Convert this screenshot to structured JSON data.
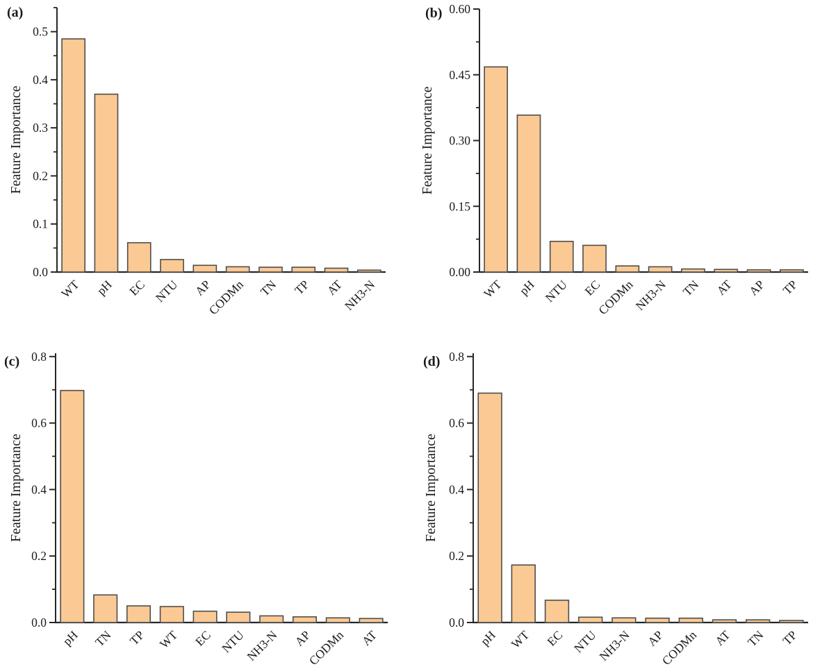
{
  "figure": {
    "background": "#ffffff",
    "ylabel": "Feature Importance"
  },
  "style": {
    "bar_fill": "#FBC993",
    "bar_edge": "#4D4D4D",
    "axis_color": "#262626",
    "text_color": "#1A1A1A"
  },
  "chart_data": [
    {
      "panel_label": "(a)",
      "type": "bar",
      "title": "",
      "xlabel": "",
      "ylabel": "Feature Importance",
      "legend": "none",
      "grid": false,
      "categories": [
        "WT",
        "pH",
        "EC",
        "NTU",
        "AP",
        "CODMn",
        "TN",
        "TP",
        "AT",
        "NH3-N"
      ],
      "values": [
        0.485,
        0.37,
        0.061,
        0.026,
        0.014,
        0.011,
        0.01,
        0.01,
        0.008,
        0.004
      ],
      "ytick_values": [
        0.0,
        0.1,
        0.2,
        0.3,
        0.4,
        0.5
      ],
      "ytick_labels": [
        "0.0",
        "0.1",
        "0.2",
        "0.3",
        "0.4",
        "0.5"
      ],
      "minor_tick_step": 0.05,
      "ylim": [
        0,
        0.55
      ]
    },
    {
      "panel_label": "(b)",
      "type": "bar",
      "title": "",
      "xlabel": "",
      "ylabel": "Feature Importance",
      "legend": "none",
      "grid": false,
      "categories": [
        "WT",
        "pH",
        "NTU",
        "EC",
        "CODMn",
        "NH3-N",
        "TN",
        "AT",
        "AP",
        "TP"
      ],
      "values": [
        0.468,
        0.358,
        0.07,
        0.061,
        0.014,
        0.012,
        0.007,
        0.006,
        0.005,
        0.005
      ],
      "ytick_values": [
        0.0,
        0.15,
        0.3,
        0.45,
        0.6
      ],
      "ytick_labels": [
        "0.00",
        "0.15",
        "0.30",
        "0.45",
        "0.60"
      ],
      "minor_tick_step": 0.075,
      "ylim": [
        0,
        0.6
      ]
    },
    {
      "panel_label": "(c)",
      "type": "bar",
      "title": "",
      "xlabel": "",
      "ylabel": "Feature Importance",
      "legend": "none",
      "grid": false,
      "categories": [
        "pH",
        "TN",
        "TP",
        "WT",
        "EC",
        "NTU",
        "NH3-N",
        "AP",
        "CODMn",
        "AT"
      ],
      "values": [
        0.698,
        0.083,
        0.05,
        0.048,
        0.034,
        0.031,
        0.02,
        0.017,
        0.014,
        0.012
      ],
      "ytick_values": [
        0.0,
        0.2,
        0.4,
        0.6,
        0.8
      ],
      "ytick_labels": [
        "0.0",
        "0.2",
        "0.4",
        "0.6",
        "0.8"
      ],
      "minor_tick_step": 0.1,
      "ylim": [
        0,
        0.81
      ]
    },
    {
      "panel_label": "(d)",
      "type": "bar",
      "title": "",
      "xlabel": "",
      "ylabel": "Feature Importance",
      "legend": "none",
      "grid": false,
      "categories": [
        "pH",
        "WT",
        "EC",
        "NTU",
        "NH3-N",
        "AP",
        "CODMn",
        "AT",
        "TN",
        "TP"
      ],
      "values": [
        0.69,
        0.173,
        0.067,
        0.016,
        0.014,
        0.013,
        0.013,
        0.008,
        0.008,
        0.006
      ],
      "ytick_values": [
        0.0,
        0.2,
        0.4,
        0.6,
        0.8
      ],
      "ytick_labels": [
        "0.0",
        "0.2",
        "0.4",
        "0.6",
        "0.8"
      ],
      "minor_tick_step": 0.1,
      "ylim": [
        0,
        0.81
      ]
    }
  ]
}
